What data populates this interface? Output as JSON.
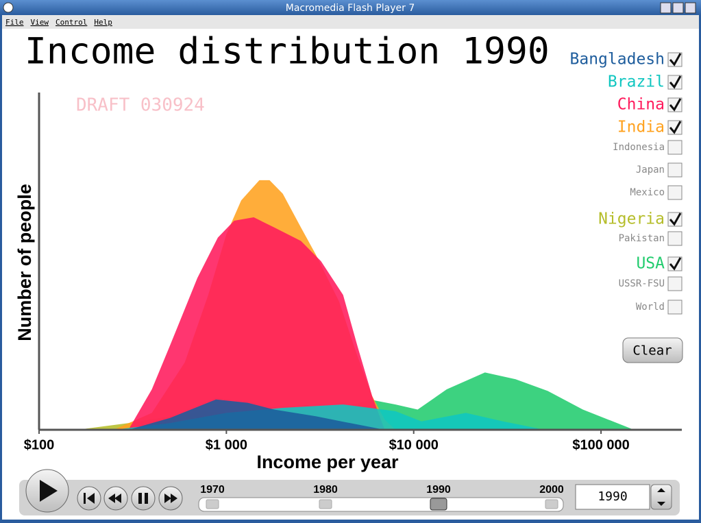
{
  "window": {
    "title": "Macromedia Flash Player 7",
    "menu": [
      "File",
      "View",
      "Control",
      "Help"
    ]
  },
  "chart_data": {
    "type": "area",
    "title": "Income distribution 1990",
    "annotation": "DRAFT 030924",
    "x_label": "Income per year",
    "y_label": "Number of people",
    "x_scale": "log",
    "xlim": [
      100,
      270000
    ],
    "ylim": [
      0,
      100
    ],
    "xticks": [
      {
        "value": 100,
        "label": "$100"
      },
      {
        "value": 1000,
        "label": "$1 000"
      },
      {
        "value": 10000,
        "label": "$10 000"
      },
      {
        "value": 100000,
        "label": "$100 000"
      }
    ],
    "series": [
      {
        "name": "Nigeria",
        "color": "#b5bd2a",
        "x": [
          160,
          300,
          500,
          740,
          1000,
          1800,
          3000,
          5400
        ],
        "values": [
          0,
          2,
          4,
          5.5,
          5,
          3.5,
          2,
          0
        ]
      },
      {
        "name": "USA",
        "color": "#22cc6e",
        "x": [
          2500,
          4000,
          5800,
          8000,
          10500,
          15000,
          24000,
          35000,
          52000,
          80000,
          150000
        ],
        "values": [
          0,
          6,
          9,
          7.5,
          6,
          12,
          17,
          15,
          11.5,
          6,
          0
        ]
      },
      {
        "name": "India",
        "color": "#ffa21f",
        "x": [
          250,
          400,
          600,
          800,
          1000,
          1200,
          1500,
          1700,
          2000,
          2500,
          3000,
          4000,
          5000,
          6000,
          7000,
          8000
        ],
        "values": [
          0,
          5,
          20,
          40,
          58,
          68,
          74,
          74,
          70,
          60,
          52,
          38,
          22,
          10,
          3,
          0
        ]
      },
      {
        "name": "China",
        "color": "#ff1a5c",
        "x": [
          300,
          400,
          500,
          700,
          900,
          1100,
          1400,
          1800,
          2500,
          3200,
          4200,
          5000,
          6000,
          7000
        ],
        "values": [
          0,
          12,
          25,
          45,
          57,
          62,
          63,
          60,
          56,
          50,
          40,
          25,
          10,
          0
        ]
      },
      {
        "name": "Brazil",
        "color": "#10c6c0",
        "x": [
          250,
          500,
          1000,
          2000,
          4200,
          8000,
          11000,
          19000,
          30000,
          50000
        ],
        "values": [
          0,
          2,
          5,
          6.5,
          7.5,
          5.5,
          2.5,
          5,
          2.5,
          0
        ]
      },
      {
        "name": "Bangladesh",
        "color": "#1d5c9c",
        "x": [
          300,
          500,
          880,
          1300,
          1800,
          3000,
          4200,
          7000
        ],
        "values": [
          0,
          3.5,
          9,
          8,
          6,
          4,
          2.4,
          0
        ]
      }
    ]
  },
  "selector": [
    {
      "label": "Bangladesh",
      "checked": true
    },
    {
      "label": "Brazil",
      "checked": true
    },
    {
      "label": "China",
      "checked": true
    },
    {
      "label": "India",
      "checked": true
    },
    {
      "label": "Indonesia",
      "checked": false
    },
    {
      "label": "Japan",
      "checked": false
    },
    {
      "label": "Mexico",
      "checked": false
    },
    {
      "label": "Nigeria",
      "checked": true
    },
    {
      "label": "Pakistan",
      "checked": false
    },
    {
      "label": "USA",
      "checked": true
    },
    {
      "label": "USSR-FSU",
      "checked": false
    },
    {
      "label": "World",
      "checked": false
    }
  ],
  "clear_button": "Clear",
  "timeline": {
    "ticks": [
      1970,
      1980,
      1990,
      2000
    ],
    "year": 1990,
    "year_box": "1990"
  }
}
